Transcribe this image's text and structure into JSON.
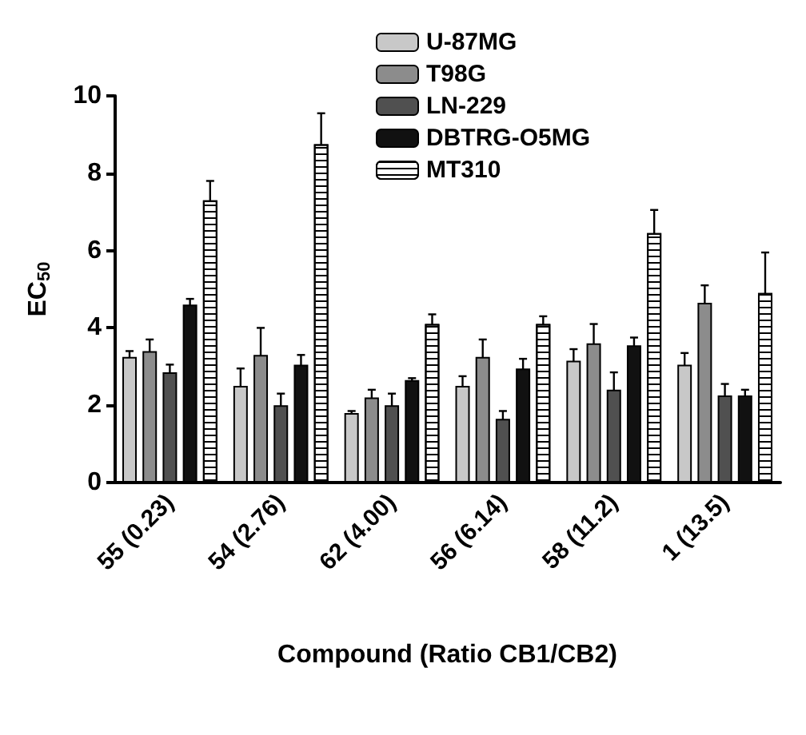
{
  "chart_data": {
    "type": "bar",
    "xlabel": "Compound (Ratio CB1/CB2)",
    "ylabel": "EC$_{50}$",
    "categories": [
      "55 (0.23)",
      "54 (2.76)",
      "62 (4.00)",
      "56 (6.14)",
      "58 (11.2)",
      "1 (13.5)"
    ],
    "ylim": [
      0,
      10
    ],
    "yticks": [
      0,
      2,
      4,
      6,
      8,
      10
    ],
    "grid": false,
    "legend": "top right",
    "series": [
      {
        "name": "U-87MG",
        "color": "#c8c8c8",
        "values": [
          3.25,
          2.5,
          1.8,
          2.5,
          3.15,
          3.05
        ],
        "errors": [
          0.15,
          0.45,
          0.05,
          0.25,
          0.3,
          0.3
        ]
      },
      {
        "name": "T98G",
        "color": "#8c8c8c",
        "values": [
          3.4,
          3.3,
          2.2,
          3.25,
          3.6,
          4.65
        ],
        "errors": [
          0.3,
          0.7,
          0.2,
          0.45,
          0.5,
          0.45
        ]
      },
      {
        "name": "LN-229",
        "color": "#505050",
        "values": [
          2.85,
          2.0,
          2.0,
          1.65,
          2.4,
          2.25
        ],
        "errors": [
          0.2,
          0.3,
          0.3,
          0.2,
          0.45,
          0.3
        ]
      },
      {
        "name": "DBTRG-O5MG",
        "color": "#111111",
        "values": [
          4.6,
          3.05,
          2.65,
          2.95,
          3.55,
          2.25
        ],
        "errors": [
          0.15,
          0.25,
          0.05,
          0.25,
          0.2,
          0.15
        ]
      },
      {
        "name": "MT310",
        "color": "#ffffff",
        "values": [
          7.3,
          8.75,
          4.1,
          4.1,
          6.45,
          4.9
        ],
        "errors": [
          0.5,
          0.8,
          0.25,
          0.2,
          0.6,
          1.05
        ]
      }
    ]
  }
}
